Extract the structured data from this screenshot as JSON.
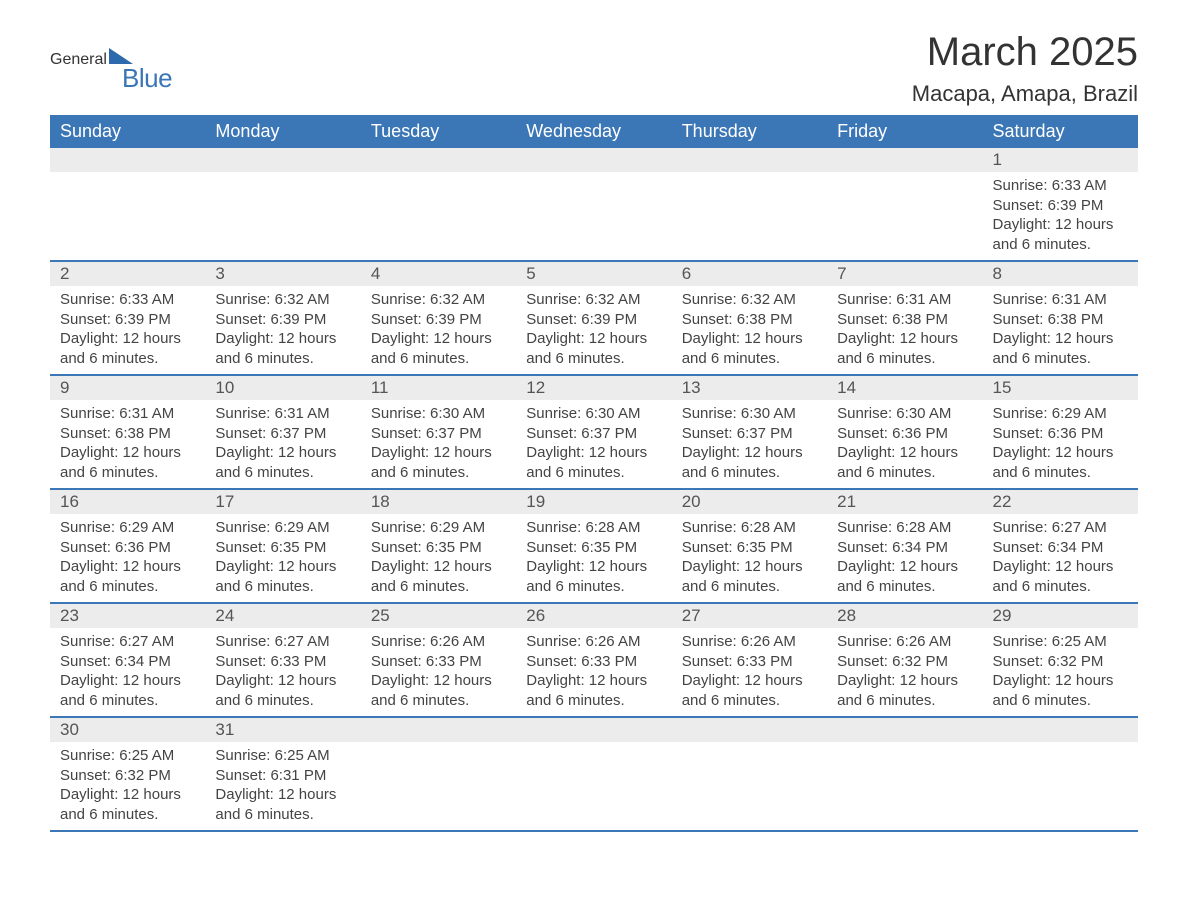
{
  "logo": {
    "word1": "General",
    "word2": "Blue"
  },
  "title": "March 2025",
  "location": "Macapa, Amapa, Brazil",
  "colors": {
    "header_bg": "#3b76b6",
    "header_text": "#ffffff",
    "daynum_bg": "#ececec",
    "week_border": "#3b76b6",
    "body_text": "#444444",
    "page_bg": "#ffffff"
  },
  "typography": {
    "title_fontsize": 40,
    "location_fontsize": 22,
    "header_fontsize": 18,
    "daynum_fontsize": 17,
    "detail_fontsize": 15
  },
  "day_headers": [
    "Sunday",
    "Monday",
    "Tuesday",
    "Wednesday",
    "Thursday",
    "Friday",
    "Saturday"
  ],
  "weeks": [
    [
      {
        "day": "",
        "sunrise": "",
        "sunset": "",
        "daylight": ""
      },
      {
        "day": "",
        "sunrise": "",
        "sunset": "",
        "daylight": ""
      },
      {
        "day": "",
        "sunrise": "",
        "sunset": "",
        "daylight": ""
      },
      {
        "day": "",
        "sunrise": "",
        "sunset": "",
        "daylight": ""
      },
      {
        "day": "",
        "sunrise": "",
        "sunset": "",
        "daylight": ""
      },
      {
        "day": "",
        "sunrise": "",
        "sunset": "",
        "daylight": ""
      },
      {
        "day": "1",
        "sunrise": "Sunrise: 6:33 AM",
        "sunset": "Sunset: 6:39 PM",
        "daylight": "Daylight: 12 hours and 6 minutes."
      }
    ],
    [
      {
        "day": "2",
        "sunrise": "Sunrise: 6:33 AM",
        "sunset": "Sunset: 6:39 PM",
        "daylight": "Daylight: 12 hours and 6 minutes."
      },
      {
        "day": "3",
        "sunrise": "Sunrise: 6:32 AM",
        "sunset": "Sunset: 6:39 PM",
        "daylight": "Daylight: 12 hours and 6 minutes."
      },
      {
        "day": "4",
        "sunrise": "Sunrise: 6:32 AM",
        "sunset": "Sunset: 6:39 PM",
        "daylight": "Daylight: 12 hours and 6 minutes."
      },
      {
        "day": "5",
        "sunrise": "Sunrise: 6:32 AM",
        "sunset": "Sunset: 6:39 PM",
        "daylight": "Daylight: 12 hours and 6 minutes."
      },
      {
        "day": "6",
        "sunrise": "Sunrise: 6:32 AM",
        "sunset": "Sunset: 6:38 PM",
        "daylight": "Daylight: 12 hours and 6 minutes."
      },
      {
        "day": "7",
        "sunrise": "Sunrise: 6:31 AM",
        "sunset": "Sunset: 6:38 PM",
        "daylight": "Daylight: 12 hours and 6 minutes."
      },
      {
        "day": "8",
        "sunrise": "Sunrise: 6:31 AM",
        "sunset": "Sunset: 6:38 PM",
        "daylight": "Daylight: 12 hours and 6 minutes."
      }
    ],
    [
      {
        "day": "9",
        "sunrise": "Sunrise: 6:31 AM",
        "sunset": "Sunset: 6:38 PM",
        "daylight": "Daylight: 12 hours and 6 minutes."
      },
      {
        "day": "10",
        "sunrise": "Sunrise: 6:31 AM",
        "sunset": "Sunset: 6:37 PM",
        "daylight": "Daylight: 12 hours and 6 minutes."
      },
      {
        "day": "11",
        "sunrise": "Sunrise: 6:30 AM",
        "sunset": "Sunset: 6:37 PM",
        "daylight": "Daylight: 12 hours and 6 minutes."
      },
      {
        "day": "12",
        "sunrise": "Sunrise: 6:30 AM",
        "sunset": "Sunset: 6:37 PM",
        "daylight": "Daylight: 12 hours and 6 minutes."
      },
      {
        "day": "13",
        "sunrise": "Sunrise: 6:30 AM",
        "sunset": "Sunset: 6:37 PM",
        "daylight": "Daylight: 12 hours and 6 minutes."
      },
      {
        "day": "14",
        "sunrise": "Sunrise: 6:30 AM",
        "sunset": "Sunset: 6:36 PM",
        "daylight": "Daylight: 12 hours and 6 minutes."
      },
      {
        "day": "15",
        "sunrise": "Sunrise: 6:29 AM",
        "sunset": "Sunset: 6:36 PM",
        "daylight": "Daylight: 12 hours and 6 minutes."
      }
    ],
    [
      {
        "day": "16",
        "sunrise": "Sunrise: 6:29 AM",
        "sunset": "Sunset: 6:36 PM",
        "daylight": "Daylight: 12 hours and 6 minutes."
      },
      {
        "day": "17",
        "sunrise": "Sunrise: 6:29 AM",
        "sunset": "Sunset: 6:35 PM",
        "daylight": "Daylight: 12 hours and 6 minutes."
      },
      {
        "day": "18",
        "sunrise": "Sunrise: 6:29 AM",
        "sunset": "Sunset: 6:35 PM",
        "daylight": "Daylight: 12 hours and 6 minutes."
      },
      {
        "day": "19",
        "sunrise": "Sunrise: 6:28 AM",
        "sunset": "Sunset: 6:35 PM",
        "daylight": "Daylight: 12 hours and 6 minutes."
      },
      {
        "day": "20",
        "sunrise": "Sunrise: 6:28 AM",
        "sunset": "Sunset: 6:35 PM",
        "daylight": "Daylight: 12 hours and 6 minutes."
      },
      {
        "day": "21",
        "sunrise": "Sunrise: 6:28 AM",
        "sunset": "Sunset: 6:34 PM",
        "daylight": "Daylight: 12 hours and 6 minutes."
      },
      {
        "day": "22",
        "sunrise": "Sunrise: 6:27 AM",
        "sunset": "Sunset: 6:34 PM",
        "daylight": "Daylight: 12 hours and 6 minutes."
      }
    ],
    [
      {
        "day": "23",
        "sunrise": "Sunrise: 6:27 AM",
        "sunset": "Sunset: 6:34 PM",
        "daylight": "Daylight: 12 hours and 6 minutes."
      },
      {
        "day": "24",
        "sunrise": "Sunrise: 6:27 AM",
        "sunset": "Sunset: 6:33 PM",
        "daylight": "Daylight: 12 hours and 6 minutes."
      },
      {
        "day": "25",
        "sunrise": "Sunrise: 6:26 AM",
        "sunset": "Sunset: 6:33 PM",
        "daylight": "Daylight: 12 hours and 6 minutes."
      },
      {
        "day": "26",
        "sunrise": "Sunrise: 6:26 AM",
        "sunset": "Sunset: 6:33 PM",
        "daylight": "Daylight: 12 hours and 6 minutes."
      },
      {
        "day": "27",
        "sunrise": "Sunrise: 6:26 AM",
        "sunset": "Sunset: 6:33 PM",
        "daylight": "Daylight: 12 hours and 6 minutes."
      },
      {
        "day": "28",
        "sunrise": "Sunrise: 6:26 AM",
        "sunset": "Sunset: 6:32 PM",
        "daylight": "Daylight: 12 hours and 6 minutes."
      },
      {
        "day": "29",
        "sunrise": "Sunrise: 6:25 AM",
        "sunset": "Sunset: 6:32 PM",
        "daylight": "Daylight: 12 hours and 6 minutes."
      }
    ],
    [
      {
        "day": "30",
        "sunrise": "Sunrise: 6:25 AM",
        "sunset": "Sunset: 6:32 PM",
        "daylight": "Daylight: 12 hours and 6 minutes."
      },
      {
        "day": "31",
        "sunrise": "Sunrise: 6:25 AM",
        "sunset": "Sunset: 6:31 PM",
        "daylight": "Daylight: 12 hours and 6 minutes."
      },
      {
        "day": "",
        "sunrise": "",
        "sunset": "",
        "daylight": ""
      },
      {
        "day": "",
        "sunrise": "",
        "sunset": "",
        "daylight": ""
      },
      {
        "day": "",
        "sunrise": "",
        "sunset": "",
        "daylight": ""
      },
      {
        "day": "",
        "sunrise": "",
        "sunset": "",
        "daylight": ""
      },
      {
        "day": "",
        "sunrise": "",
        "sunset": "",
        "daylight": ""
      }
    ]
  ]
}
